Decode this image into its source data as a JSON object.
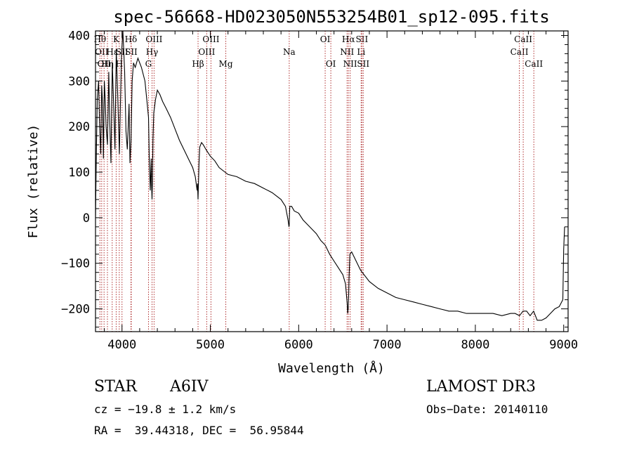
{
  "chart_data": {
    "type": "line",
    "title": "spec-56668-HD023050N553254B01_sp12-095.fits",
    "xlabel": "Wavelength (Å)",
    "ylabel": "Flux (relative)",
    "xlim": [
      3700,
      9050
    ],
    "ylim": [
      -250,
      410
    ],
    "xticks": [
      4000,
      5000,
      6000,
      7000,
      8000,
      9000
    ],
    "yticks": [
      -200,
      -100,
      0,
      100,
      200,
      300,
      400
    ],
    "series": [
      {
        "name": "spectrum",
        "x": [
          3700,
          3710,
          3720,
          3735,
          3745,
          3760,
          3770,
          3780,
          3790,
          3800,
          3810,
          3820,
          3835,
          3850,
          3860,
          3875,
          3890,
          3905,
          3920,
          3935,
          3950,
          3965,
          3970,
          3980,
          3995,
          4010,
          4030,
          4045,
          4060,
          4080,
          4090,
          4102,
          4115,
          4130,
          4150,
          4180,
          4220,
          4260,
          4280,
          4300,
          4310,
          4320,
          4330,
          4335,
          4340,
          4345,
          4350,
          4360,
          4380,
          4400,
          4430,
          4460,
          4500,
          4550,
          4600,
          4650,
          4700,
          4750,
          4800,
          4830,
          4850,
          4855,
          4861,
          4866,
          4872,
          4880,
          4900,
          4920,
          4950,
          5000,
          5050,
          5100,
          5200,
          5300,
          5400,
          5500,
          5600,
          5700,
          5800,
          5850,
          5880,
          5890,
          5893,
          5896,
          5900,
          5920,
          5950,
          6000,
          6050,
          6100,
          6150,
          6200,
          6250,
          6300,
          6350,
          6400,
          6450,
          6500,
          6530,
          6550,
          6555,
          6560,
          6563,
          6566,
          6570,
          6580,
          6600,
          6650,
          6700,
          6800,
          6900,
          7000,
          7100,
          7200,
          7300,
          7400,
          7500,
          7600,
          7700,
          7800,
          7900,
          8000,
          8100,
          8200,
          8300,
          8400,
          8450,
          8500,
          8540,
          8580,
          8620,
          8660,
          8700,
          8750,
          8800,
          8850,
          8900,
          8950,
          8990,
          9000,
          9010
        ],
        "y": [
          0,
          150,
          260,
          300,
          210,
          140,
          290,
          250,
          130,
          300,
          260,
          200,
          160,
          320,
          220,
          120,
          340,
          250,
          150,
          370,
          280,
          180,
          140,
          230,
          360,
          410,
          320,
          190,
          150,
          250,
          120,
          170,
          300,
          340,
          330,
          350,
          330,
          300,
          260,
          220,
          120,
          60,
          130,
          70,
          40,
          80,
          170,
          230,
          260,
          280,
          270,
          255,
          240,
          220,
          195,
          170,
          150,
          130,
          110,
          90,
          60,
          75,
          40,
          80,
          120,
          155,
          165,
          160,
          150,
          135,
          125,
          110,
          95,
          90,
          80,
          75,
          65,
          55,
          40,
          25,
          -5,
          -20,
          -15,
          5,
          25,
          25,
          15,
          10,
          -5,
          -15,
          -25,
          -35,
          -50,
          -60,
          -80,
          -95,
          -110,
          -125,
          -145,
          -190,
          -210,
          -200,
          -185,
          -170,
          -135,
          -80,
          -75,
          -95,
          -115,
          -140,
          -155,
          -165,
          -175,
          -180,
          -185,
          -190,
          -195,
          -200,
          -205,
          -205,
          -210,
          -210,
          -210,
          -210,
          -215,
          -210,
          -210,
          -215,
          -205,
          -205,
          -215,
          -205,
          -225,
          -225,
          -220,
          -210,
          -200,
          -195,
          -180,
          -70,
          -20
        ]
      }
    ],
    "lines": [
      {
        "x": 3750,
        "label": "Hθ",
        "row": 0
      },
      {
        "x": 3770,
        "label": "OII",
        "row": 1
      },
      {
        "x": 3797,
        "label": "OII",
        "row": 2
      },
      {
        "x": 3835,
        "label": "Hη",
        "row": 2
      },
      {
        "x": 3889,
        "label": "Hε",
        "row": 1
      },
      {
        "x": 3934,
        "label": "K",
        "row": 0
      },
      {
        "x": 3969,
        "label": "H",
        "row": 2
      },
      {
        "x": 4000,
        "label": "SII",
        "row": 1
      },
      {
        "x": 4101,
        "label": "Hδ",
        "row": 0
      },
      {
        "x": 4105,
        "label": "SII",
        "row": 1
      },
      {
        "x": 4300,
        "label": "G",
        "row": 2
      },
      {
        "x": 4340,
        "label": "Hγ",
        "row": 1
      },
      {
        "x": 4363,
        "label": "OIII",
        "row": 0
      },
      {
        "x": 4861,
        "label": "Hβ",
        "row": 2
      },
      {
        "x": 4959,
        "label": "OIII",
        "row": 1
      },
      {
        "x": 5007,
        "label": "OIII",
        "row": 0
      },
      {
        "x": 5175,
        "label": "Mg",
        "row": 2
      },
      {
        "x": 5893,
        "label": "Na",
        "row": 1
      },
      {
        "x": 6300,
        "label": "OI",
        "row": 0
      },
      {
        "x": 6364,
        "label": "OI",
        "row": 2
      },
      {
        "x": 6548,
        "label": "NII",
        "row": 1
      },
      {
        "x": 6563,
        "label": "Hα",
        "row": 0
      },
      {
        "x": 6583,
        "label": "NII",
        "row": 2
      },
      {
        "x": 6707,
        "label": "Li",
        "row": 1
      },
      {
        "x": 6716,
        "label": "SII",
        "row": 0
      },
      {
        "x": 6731,
        "label": "SII",
        "row": 2
      },
      {
        "x": 8498,
        "label": "CaII",
        "row": 1
      },
      {
        "x": 8542,
        "label": "CaII",
        "row": 0
      },
      {
        "x": 8662,
        "label": "CaII",
        "row": 2
      }
    ]
  },
  "info": {
    "object_class": "STAR",
    "subclass": "A6IV",
    "survey": "LAMOST DR3",
    "cz": "cz = −19.8 ± 1.2 km/s",
    "obs_date": "Obs−Date: 20140110",
    "coords": "RA =  39.44318, DEC =  56.95844"
  }
}
